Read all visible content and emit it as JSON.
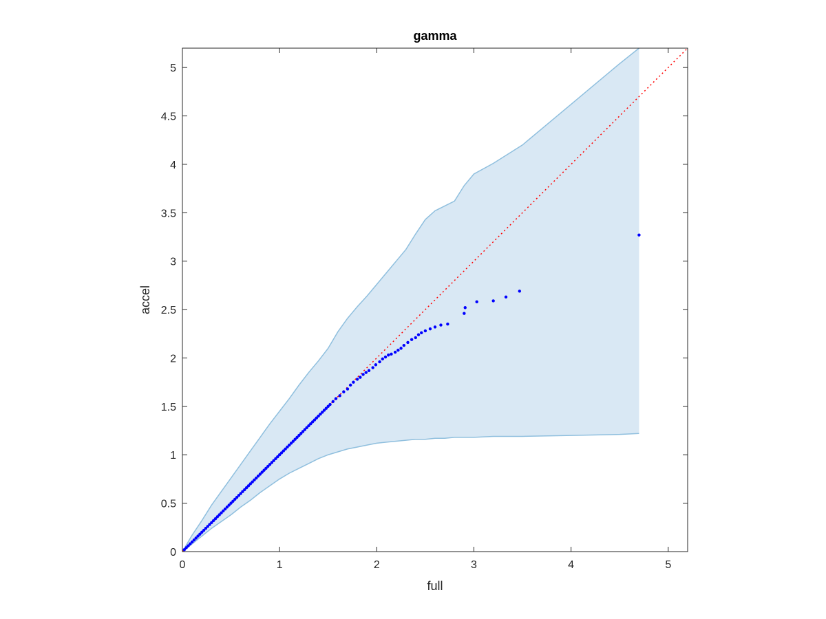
{
  "chart_data": {
    "type": "scatter",
    "title": "gamma",
    "xlabel": "full",
    "ylabel": "accel",
    "xlim": [
      0,
      5.2
    ],
    "ylim": [
      0,
      5.2
    ],
    "xticks": [
      0,
      1,
      2,
      3,
      4,
      5
    ],
    "yticks": [
      0,
      0.5,
      1,
      1.5,
      2,
      2.5,
      3,
      3.5,
      4,
      4.5,
      5
    ],
    "xtick_labels": [
      "0",
      "1",
      "2",
      "3",
      "4",
      "5"
    ],
    "ytick_labels": [
      "0",
      "0.5",
      "1",
      "1.5",
      "2",
      "2.5",
      "3",
      "3.5",
      "4",
      "4.5",
      "5"
    ],
    "grid": false,
    "reference_line": {
      "x": [
        0,
        5.2
      ],
      "y": [
        0,
        5.2
      ],
      "color": "#ff0000",
      "style": "dotted"
    },
    "band": {
      "color_fill": "#d9e8f4",
      "color_edge": "#8fbfde",
      "x": [
        0,
        0.1,
        0.2,
        0.3,
        0.4,
        0.5,
        0.6,
        0.7,
        0.8,
        0.9,
        1.0,
        1.1,
        1.2,
        1.3,
        1.4,
        1.5,
        1.6,
        1.7,
        1.8,
        1.9,
        2.0,
        2.1,
        2.2,
        2.3,
        2.4,
        2.5,
        2.6,
        2.7,
        2.8,
        2.9,
        3.0,
        3.2,
        3.5,
        4.0,
        4.5,
        4.7
      ],
      "upper": [
        0,
        0.17,
        0.32,
        0.48,
        0.62,
        0.76,
        0.9,
        1.04,
        1.18,
        1.32,
        1.45,
        1.58,
        1.72,
        1.85,
        1.97,
        2.1,
        2.27,
        2.41,
        2.53,
        2.64,
        2.76,
        2.88,
        3.0,
        3.12,
        3.28,
        3.43,
        3.52,
        3.57,
        3.62,
        3.78,
        3.9,
        4.01,
        4.2,
        4.62,
        5.04,
        5.2
      ],
      "lower": [
        0,
        0.08,
        0.16,
        0.24,
        0.31,
        0.38,
        0.46,
        0.53,
        0.61,
        0.68,
        0.75,
        0.81,
        0.86,
        0.91,
        0.96,
        1.0,
        1.03,
        1.06,
        1.08,
        1.1,
        1.12,
        1.13,
        1.14,
        1.15,
        1.16,
        1.16,
        1.17,
        1.17,
        1.18,
        1.18,
        1.18,
        1.19,
        1.19,
        1.2,
        1.21,
        1.22
      ]
    },
    "series": [
      {
        "color": "#0000ff",
        "x": [
          0.02,
          0.04,
          0.06,
          0.08,
          0.1,
          0.12,
          0.14,
          0.16,
          0.18,
          0.2,
          0.22,
          0.24,
          0.26,
          0.28,
          0.3,
          0.32,
          0.34,
          0.36,
          0.38,
          0.4,
          0.42,
          0.44,
          0.46,
          0.48,
          0.5,
          0.52,
          0.54,
          0.56,
          0.58,
          0.6,
          0.62,
          0.64,
          0.66,
          0.68,
          0.7,
          0.72,
          0.74,
          0.76,
          0.78,
          0.8,
          0.82,
          0.84,
          0.86,
          0.88,
          0.9,
          0.92,
          0.94,
          0.96,
          0.98,
          1.0,
          1.02,
          1.04,
          1.06,
          1.08,
          1.1,
          1.12,
          1.14,
          1.16,
          1.18,
          1.2,
          1.22,
          1.24,
          1.26,
          1.28,
          1.3,
          1.32,
          1.34,
          1.36,
          1.38,
          1.4,
          1.42,
          1.44,
          1.46,
          1.48,
          1.5,
          1.52,
          1.55,
          1.58,
          1.62,
          1.66,
          1.7,
          1.73,
          1.76,
          1.8,
          1.83,
          1.86,
          1.89,
          1.92,
          1.96,
          1.99,
          2.03,
          2.06,
          2.09,
          2.12,
          2.15,
          2.19,
          2.22,
          2.25,
          2.28,
          2.32,
          2.36,
          2.4,
          2.43,
          2.46,
          2.5,
          2.55,
          2.6,
          2.66,
          2.73,
          2.9,
          2.91,
          3.03,
          3.2,
          3.33,
          3.47,
          4.7
        ],
        "y": [
          0.02,
          0.04,
          0.06,
          0.08,
          0.1,
          0.12,
          0.14,
          0.16,
          0.18,
          0.2,
          0.22,
          0.24,
          0.26,
          0.28,
          0.3,
          0.32,
          0.34,
          0.36,
          0.38,
          0.4,
          0.42,
          0.44,
          0.46,
          0.48,
          0.5,
          0.52,
          0.54,
          0.56,
          0.58,
          0.6,
          0.62,
          0.64,
          0.66,
          0.68,
          0.7,
          0.72,
          0.74,
          0.76,
          0.78,
          0.8,
          0.82,
          0.84,
          0.86,
          0.88,
          0.9,
          0.92,
          0.94,
          0.96,
          0.98,
          1.0,
          1.02,
          1.04,
          1.06,
          1.08,
          1.1,
          1.12,
          1.14,
          1.16,
          1.18,
          1.2,
          1.22,
          1.24,
          1.26,
          1.28,
          1.3,
          1.32,
          1.34,
          1.36,
          1.38,
          1.4,
          1.42,
          1.44,
          1.46,
          1.48,
          1.5,
          1.52,
          1.55,
          1.58,
          1.61,
          1.65,
          1.68,
          1.72,
          1.75,
          1.78,
          1.8,
          1.83,
          1.85,
          1.87,
          1.9,
          1.93,
          1.96,
          1.99,
          2.01,
          2.03,
          2.04,
          2.06,
          2.08,
          2.1,
          2.13,
          2.16,
          2.19,
          2.21,
          2.24,
          2.26,
          2.28,
          2.3,
          2.32,
          2.34,
          2.35,
          2.46,
          2.52,
          2.58,
          2.59,
          2.63,
          2.69,
          3.27
        ]
      }
    ]
  }
}
